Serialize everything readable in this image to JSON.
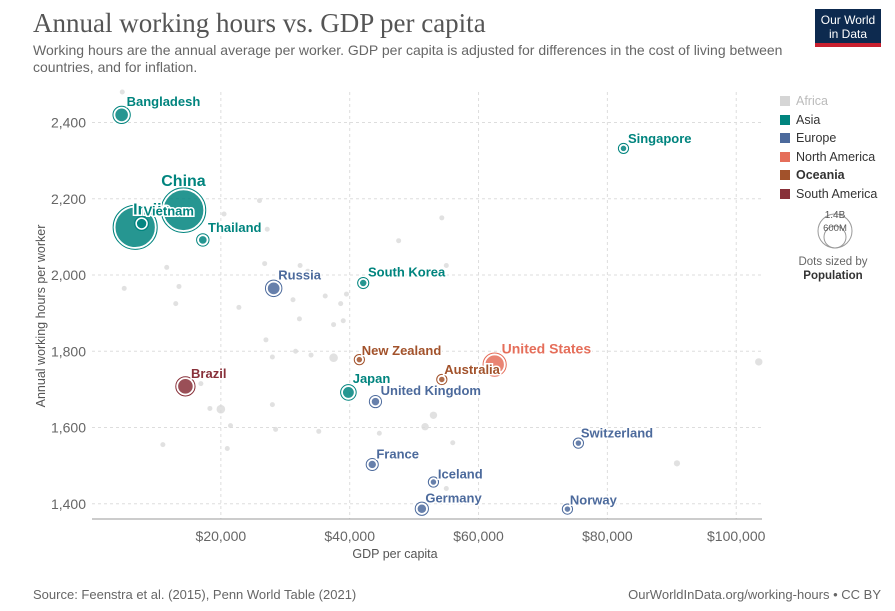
{
  "header": {
    "title": "Annual working hours vs. GDP per capita",
    "subtitle": "Working hours are the annual average per worker. GDP per capita is adjusted for differences in the cost of living between countries, and for inflation.",
    "logo_line1": "Our World",
    "logo_line2": "in Data"
  },
  "footer": {
    "source": "Source: Feenstra et al. (2015), Penn World Table (2021)",
    "credit": "OurWorldInData.org/working-hours • CC BY"
  },
  "legend": {
    "items": [
      {
        "label": "Africa",
        "color": "#d5d5d5",
        "state": "inactive"
      },
      {
        "label": "Asia",
        "color": "#00847e",
        "state": "normal"
      },
      {
        "label": "Europe",
        "color": "#4c6a9c",
        "state": "normal"
      },
      {
        "label": "North America",
        "color": "#e56e5a",
        "state": "normal"
      },
      {
        "label": "Oceania",
        "color": "#a2522b",
        "state": "bold"
      },
      {
        "label": "South America",
        "color": "#883039",
        "state": "normal"
      }
    ],
    "size_big": "1.4B",
    "size_small": "600M",
    "size_note": "Dots sized by",
    "size_var": "Population"
  },
  "chart_data": {
    "type": "scatter",
    "title": "Annual working hours vs. GDP per capita",
    "xlabel": "GDP per capita",
    "ylabel": "Annual working hours per worker",
    "xlim": [
      0,
      104000
    ],
    "ylim": [
      1360,
      2480
    ],
    "x_ticks": [
      20000,
      40000,
      60000,
      80000,
      100000
    ],
    "x_tick_labels": [
      "$20,000",
      "$40,000",
      "$60,000",
      "$80,000",
      "$100,000"
    ],
    "y_ticks": [
      1400,
      1600,
      1800,
      2000,
      2200,
      2400
    ],
    "y_tick_labels": [
      "1,400",
      "1,600",
      "1,800",
      "2,000",
      "2,200",
      "2,400"
    ],
    "grid": true,
    "legend_position": "right",
    "points": [
      {
        "label": "Bangladesh",
        "region": "Asia",
        "x": 4600,
        "y": 2420,
        "pop": 165
      },
      {
        "label": "China",
        "region": "Asia",
        "x": 14200,
        "y": 2170,
        "pop": 1410
      },
      {
        "label": "India",
        "region": "Asia",
        "x": 6700,
        "y": 2125,
        "pop": 1380
      },
      {
        "label": "Vietnam",
        "region": "Asia",
        "x": 7700,
        "y": 2135,
        "pop": 97
      },
      {
        "label": "Thailand",
        "region": "Asia",
        "x": 17200,
        "y": 2092,
        "pop": 70
      },
      {
        "label": "Singapore",
        "region": "Asia",
        "x": 82500,
        "y": 2332,
        "pop": 6
      },
      {
        "label": "South Korea",
        "region": "Asia",
        "x": 42100,
        "y": 1979,
        "pop": 52
      },
      {
        "label": "Japan",
        "region": "Asia",
        "x": 39800,
        "y": 1692,
        "pop": 126
      },
      {
        "label": "Russia",
        "region": "Europe",
        "x": 28200,
        "y": 1965,
        "pop": 145
      },
      {
        "label": "United Kingdom",
        "region": "Europe",
        "x": 44000,
        "y": 1668,
        "pop": 67
      },
      {
        "label": "France",
        "region": "Europe",
        "x": 43500,
        "y": 1503,
        "pop": 65
      },
      {
        "label": "Iceland",
        "region": "Europe",
        "x": 53000,
        "y": 1457,
        "pop": 0.4
      },
      {
        "label": "Germany",
        "region": "Europe",
        "x": 51200,
        "y": 1387,
        "pop": 83
      },
      {
        "label": "Switzerland",
        "region": "Europe",
        "x": 75500,
        "y": 1559,
        "pop": 9
      },
      {
        "label": "Norway",
        "region": "Europe",
        "x": 73800,
        "y": 1386,
        "pop": 5
      },
      {
        "label": "United States",
        "region": "North America",
        "x": 62500,
        "y": 1765,
        "pop": 331
      },
      {
        "label": "New Zealand",
        "region": "Oceania",
        "x": 41500,
        "y": 1778,
        "pop": 5
      },
      {
        "label": "Australia",
        "region": "Oceania",
        "x": 54300,
        "y": 1726,
        "pop": 26
      },
      {
        "label": "Brazil",
        "region": "South America",
        "x": 14500,
        "y": 1708,
        "pop": 213
      }
    ],
    "background_points": [
      [
        4700,
        2480
      ],
      [
        5000,
        1965
      ],
      [
        11600,
        2020
      ],
      [
        13000,
        1925
      ],
      [
        13500,
        1970
      ],
      [
        18400,
        2135
      ],
      [
        20500,
        2160
      ],
      [
        26000,
        2195
      ],
      [
        27200,
        2120
      ],
      [
        26800,
        2030
      ],
      [
        27000,
        1830
      ],
      [
        28000,
        1785
      ],
      [
        32300,
        2025
      ],
      [
        31200,
        1935
      ],
      [
        32200,
        1885
      ],
      [
        31600,
        1800
      ],
      [
        34000,
        1790
      ],
      [
        36200,
        1945
      ],
      [
        37500,
        1870
      ],
      [
        38600,
        1925
      ],
      [
        39500,
        1950
      ],
      [
        39000,
        1880
      ],
      [
        37500,
        1783
      ],
      [
        47600,
        2090
      ],
      [
        54300,
        2150
      ],
      [
        55000,
        2025
      ],
      [
        35200,
        1590
      ],
      [
        28000,
        1660
      ],
      [
        28500,
        1595
      ],
      [
        21500,
        1605
      ],
      [
        20000,
        1648
      ],
      [
        21000,
        1545
      ],
      [
        16900,
        1715
      ],
      [
        11000,
        1555
      ],
      [
        18300,
        1650
      ],
      [
        44600,
        1585
      ],
      [
        51700,
        1602
      ],
      [
        53000,
        1632
      ],
      [
        56000,
        1560
      ],
      [
        55000,
        1440
      ],
      [
        90800,
        1506
      ],
      [
        103500,
        1772
      ],
      [
        22800,
        1915
      ],
      [
        33500,
        2010
      ]
    ]
  }
}
